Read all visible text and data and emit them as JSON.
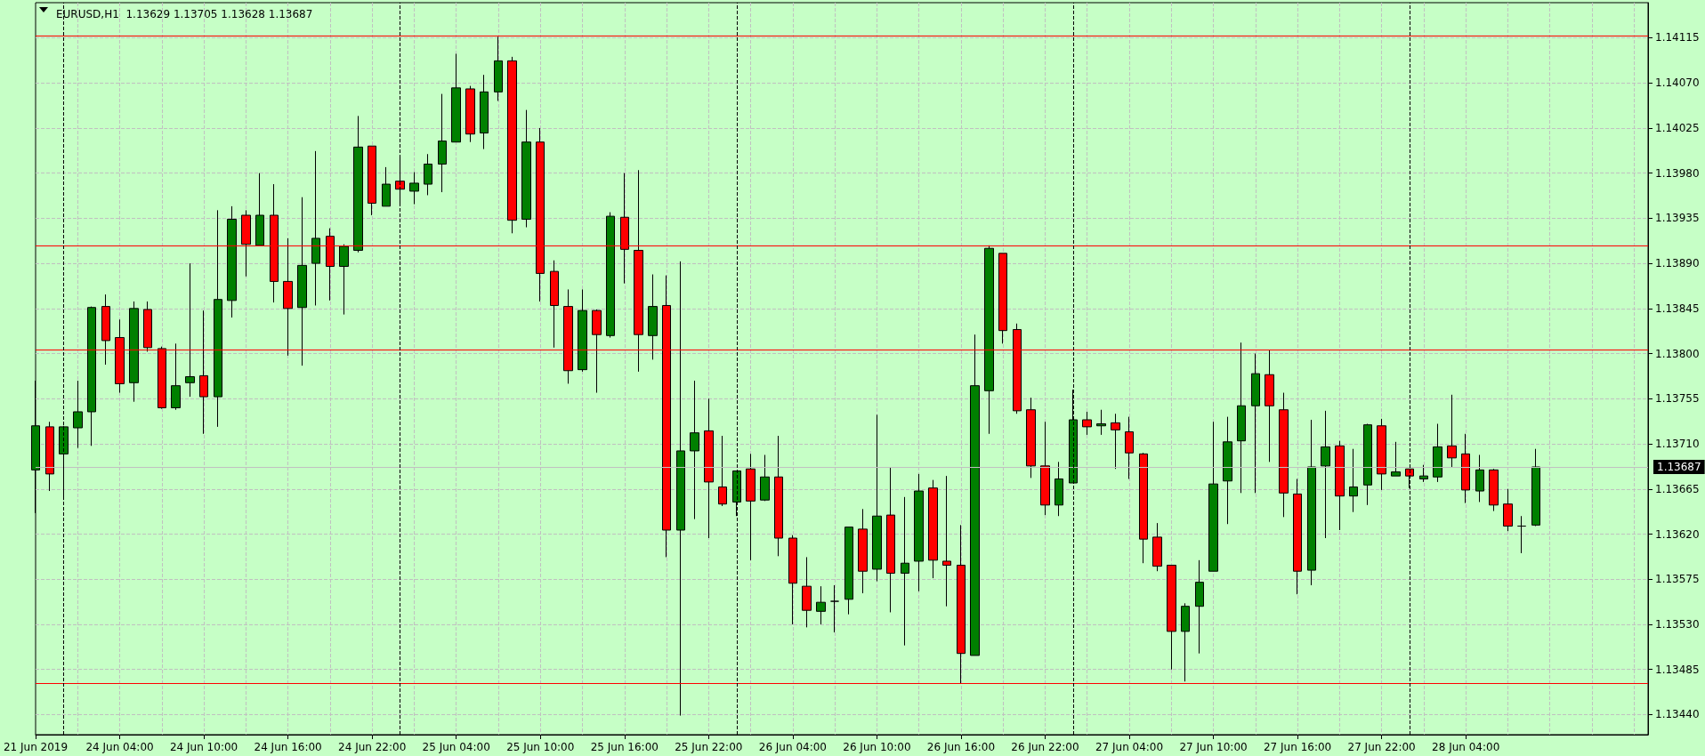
{
  "chart_data": {
    "type": "candlestick",
    "title": "EURUSD,H1  1.13629 1.13705 1.13628 1.13687",
    "categories": [
      "21 Jun 2019",
      null,
      null,
      null,
      null,
      null,
      "24 Jun 04:00",
      null,
      null,
      null,
      null,
      null,
      "24 Jun 10:00",
      null,
      null,
      null,
      null,
      null,
      "24 Jun 16:00",
      null,
      null,
      null,
      null,
      null,
      "24 Jun 22:00",
      null,
      null,
      null,
      null,
      null,
      "25 Jun 04:00",
      null,
      null,
      null,
      null,
      null,
      "25 Jun 10:00",
      null,
      null,
      null,
      null,
      null,
      "25 Jun 16:00",
      null,
      null,
      null,
      null,
      null,
      "25 Jun 22:00",
      null,
      null,
      null,
      null,
      null,
      "26 Jun 04:00",
      null,
      null,
      null,
      null,
      null,
      "26 Jun 10:00",
      null,
      null,
      null,
      null,
      null,
      "26 Jun 16:00",
      null,
      null,
      null,
      null,
      null,
      "26 Jun 22:00",
      null,
      null,
      null,
      null,
      null,
      "27 Jun 04:00",
      null,
      null,
      null,
      null,
      null,
      "27 Jun 10:00",
      null,
      null,
      null,
      null,
      null,
      "27 Jun 16:00",
      null,
      null,
      null,
      null,
      null,
      "27 Jun 22:00",
      null,
      null,
      null,
      null,
      null,
      "28 Jun 04:00",
      null,
      null,
      null,
      null,
      null,
      null,
      null,
      null,
      null,
      null,
      null,
      null,
      null
    ],
    "ohlc": [
      [
        1.13684,
        1.13773,
        1.13641,
        1.13728
      ],
      [
        1.13727,
        1.13732,
        1.13663,
        1.1368
      ],
      [
        1.137,
        1.13728,
        1.13654,
        1.13727
      ],
      [
        1.13726,
        1.13773,
        1.13706,
        1.13742
      ],
      [
        1.13742,
        1.13847,
        1.13708,
        1.13846
      ],
      [
        1.13847,
        1.13859,
        1.13789,
        1.13813
      ],
      [
        1.13816,
        1.13834,
        1.13761,
        1.1377
      ],
      [
        1.13771,
        1.13852,
        1.13752,
        1.13845
      ],
      [
        1.13844,
        1.13852,
        1.13802,
        1.13806
      ],
      [
        1.13805,
        1.13807,
        1.13745,
        1.13746
      ],
      [
        1.13746,
        1.1381,
        1.13744,
        1.13768
      ],
      [
        1.13771,
        1.1389,
        1.13757,
        1.13777
      ],
      [
        1.13778,
        1.13843,
        1.1372,
        1.13757
      ],
      [
        1.13757,
        1.13943,
        1.13727,
        1.13854
      ],
      [
        1.13853,
        1.13947,
        1.13836,
        1.13934
      ],
      [
        1.13938,
        1.13943,
        1.13877,
        1.13909
      ],
      [
        1.13908,
        1.1398,
        1.13908,
        1.13938
      ],
      [
        1.13938,
        1.13969,
        1.13851,
        1.13872
      ],
      [
        1.13872,
        1.13915,
        1.13798,
        1.13845
      ],
      [
        1.13846,
        1.13956,
        1.13788,
        1.13888
      ],
      [
        1.1389,
        1.14002,
        1.13848,
        1.13915
      ],
      [
        1.13917,
        1.13925,
        1.13853,
        1.13887
      ],
      [
        1.13887,
        1.13909,
        1.13839,
        1.13907
      ],
      [
        1.13903,
        1.14037,
        1.13901,
        1.14006
      ],
      [
        1.14007,
        1.14007,
        1.13938,
        1.1395
      ],
      [
        1.13947,
        1.13986,
        1.13947,
        1.13969
      ],
      [
        1.13972,
        1.13995,
        1.13949,
        1.13964
      ],
      [
        1.13962,
        1.13981,
        1.13949,
        1.1397
      ],
      [
        1.13969,
        1.13999,
        1.13958,
        1.13989
      ],
      [
        1.13989,
        1.14059,
        1.13961,
        1.14012
      ],
      [
        1.14011,
        1.14099,
        1.14011,
        1.14065
      ],
      [
        1.14064,
        1.14067,
        1.14011,
        1.14019
      ],
      [
        1.1402,
        1.14078,
        1.14004,
        1.14061
      ],
      [
        1.14061,
        1.14116,
        1.14052,
        1.14092
      ],
      [
        1.14092,
        1.14096,
        1.1392,
        1.13933
      ],
      [
        1.13934,
        1.14043,
        1.13926,
        1.14011
      ],
      [
        1.14011,
        1.14025,
        1.13852,
        1.1388
      ],
      [
        1.13882,
        1.13893,
        1.13806,
        1.13848
      ],
      [
        1.13847,
        1.13864,
        1.1377,
        1.13783
      ],
      [
        1.13784,
        1.13864,
        1.13782,
        1.13843
      ],
      [
        1.13843,
        1.13844,
        1.13761,
        1.13819
      ],
      [
        1.13818,
        1.13941,
        1.13816,
        1.13937
      ],
      [
        1.13936,
        1.1398,
        1.1387,
        1.13904
      ],
      [
        1.13903,
        1.13983,
        1.13782,
        1.13819
      ],
      [
        1.13818,
        1.13879,
        1.13794,
        1.13847
      ],
      [
        1.13848,
        1.13878,
        1.13597,
        1.13624
      ],
      [
        1.13624,
        1.13892,
        1.13439,
        1.13703
      ],
      [
        1.13703,
        1.13773,
        1.13635,
        1.13721
      ],
      [
        1.13723,
        1.13755,
        1.13616,
        1.13672
      ],
      [
        1.13667,
        1.13718,
        1.13648,
        1.1365
      ],
      [
        1.13652,
        1.13683,
        1.13638,
        1.13683
      ],
      [
        1.13685,
        1.137,
        1.13594,
        1.13653
      ],
      [
        1.13654,
        1.13699,
        1.13653,
        1.13677
      ],
      [
        1.13677,
        1.13718,
        1.13598,
        1.13616
      ],
      [
        1.13616,
        1.13619,
        1.1353,
        1.13571
      ],
      [
        1.13568,
        1.13597,
        1.13527,
        1.13544
      ],
      [
        1.13543,
        1.13568,
        1.1353,
        1.13552
      ],
      [
        1.13553,
        1.13569,
        1.13522,
        1.13553
      ],
      [
        1.13555,
        1.13627,
        1.1354,
        1.13627
      ],
      [
        1.13625,
        1.13645,
        1.13561,
        1.13583
      ],
      [
        1.13585,
        1.13739,
        1.13573,
        1.13638
      ],
      [
        1.13639,
        1.13687,
        1.13542,
        1.13581
      ],
      [
        1.13581,
        1.13657,
        1.13509,
        1.13591
      ],
      [
        1.13593,
        1.1368,
        1.13563,
        1.13663
      ],
      [
        1.13666,
        1.13674,
        1.13576,
        1.13594
      ],
      [
        1.13593,
        1.13678,
        1.13548,
        1.13589
      ],
      [
        1.13589,
        1.13629,
        1.13471,
        1.13501
      ],
      [
        1.13499,
        1.13819,
        1.13499,
        1.13768
      ],
      [
        1.13763,
        1.13908,
        1.1372,
        1.13905
      ],
      [
        1.139,
        1.139,
        1.1381,
        1.13823
      ],
      [
        1.13824,
        1.1383,
        1.1374,
        1.13743
      ],
      [
        1.13744,
        1.13756,
        1.13676,
        1.13688
      ],
      [
        1.13688,
        1.13732,
        1.13639,
        1.13649
      ],
      [
        1.13649,
        1.13692,
        1.13638,
        1.13675
      ],
      [
        1.13671,
        1.13764,
        1.13671,
        1.13734
      ],
      [
        1.13734,
        1.13742,
        1.13719,
        1.13727
      ],
      [
        1.13728,
        1.13744,
        1.13719,
        1.1373
      ],
      [
        1.13731,
        1.1374,
        1.13685,
        1.13724
      ],
      [
        1.13722,
        1.13737,
        1.13675,
        1.13701
      ],
      [
        1.137,
        1.13701,
        1.13591,
        1.13615
      ],
      [
        1.13617,
        1.13631,
        1.13583,
        1.13588
      ],
      [
        1.13589,
        1.13589,
        1.13485,
        1.13523
      ],
      [
        1.13523,
        1.13551,
        1.13473,
        1.13548
      ],
      [
        1.13548,
        1.13594,
        1.13501,
        1.13572
      ],
      [
        1.13583,
        1.13732,
        1.13583,
        1.1367
      ],
      [
        1.13673,
        1.13737,
        1.1363,
        1.13712
      ],
      [
        1.13713,
        1.13811,
        1.13661,
        1.13748
      ],
      [
        1.13748,
        1.138,
        1.13661,
        1.1378
      ],
      [
        1.13779,
        1.13804,
        1.13692,
        1.13748
      ],
      [
        1.13744,
        1.13761,
        1.13637,
        1.13661
      ],
      [
        1.1366,
        1.13675,
        1.1356,
        1.13583
      ],
      [
        1.13584,
        1.13734,
        1.13569,
        1.13687
      ],
      [
        1.13688,
        1.13743,
        1.13616,
        1.13707
      ],
      [
        1.13708,
        1.13713,
        1.13624,
        1.13658
      ],
      [
        1.13658,
        1.13705,
        1.13642,
        1.13667
      ],
      [
        1.13669,
        1.1373,
        1.13649,
        1.13729
      ],
      [
        1.13728,
        1.13735,
        1.13664,
        1.1368
      ],
      [
        1.13678,
        1.13712,
        1.13678,
        1.13682
      ],
      [
        1.13685,
        1.13685,
        1.13666,
        1.13678
      ],
      [
        1.13675,
        1.13689,
        1.13672,
        1.13678
      ],
      [
        1.13677,
        1.1373,
        1.13672,
        1.13707
      ],
      [
        1.13708,
        1.13759,
        1.13687,
        1.13696
      ],
      [
        1.137,
        1.1372,
        1.13651,
        1.13664
      ],
      [
        1.13663,
        1.13699,
        1.13652,
        1.13684
      ],
      [
        1.13684,
        1.13685,
        1.13643,
        1.13649
      ],
      [
        1.1365,
        1.13665,
        1.13623,
        1.13628
      ],
      [
        1.13628,
        1.13638,
        1.13601,
        1.13628
      ],
      [
        1.13629,
        1.13705,
        1.13628,
        1.13687
      ],
      null,
      null,
      null,
      null,
      null,
      null,
      null,
      null
    ],
    "colors": [
      "#008000",
      "#ff0000",
      "#008000",
      "#008000",
      "#008000",
      "#ff0000",
      "#ff0000",
      "#008000",
      "#ff0000",
      "#ff0000",
      "#008000",
      "#008000",
      "#ff0000",
      "#008000",
      "#008000",
      "#ff0000",
      "#008000",
      "#ff0000",
      "#ff0000",
      "#008000",
      "#008000",
      "#ff0000",
      "#008000",
      "#008000",
      "#ff0000",
      "#008000",
      "#ff0000",
      "#008000",
      "#008000",
      "#008000",
      "#008000",
      "#ff0000",
      "#008000",
      "#008000",
      "#ff0000",
      "#008000",
      "#ff0000",
      "#ff0000",
      "#ff0000",
      "#008000",
      "#ff0000",
      "#008000",
      "#ff0000",
      "#ff0000",
      "#008000",
      "#ff0000",
      "#008000",
      "#008000",
      "#ff0000",
      "#ff0000",
      "#008000",
      "#ff0000",
      "#008000",
      "#ff0000",
      "#ff0000",
      "#ff0000",
      "#008000",
      "#000000",
      "#008000",
      "#ff0000",
      "#008000",
      "#ff0000",
      "#008000",
      "#008000",
      "#ff0000",
      "#ff0000",
      "#ff0000",
      "#008000",
      "#008000",
      "#ff0000",
      "#ff0000",
      "#ff0000",
      "#ff0000",
      "#008000",
      "#008000",
      "#ff0000",
      "#008000",
      "#ff0000",
      "#ff0000",
      "#ff0000",
      "#ff0000",
      "#ff0000",
      "#008000",
      "#008000",
      "#008000",
      "#008000",
      "#008000",
      "#008000",
      "#ff0000",
      "#ff0000",
      "#ff0000",
      "#008000",
      "#008000",
      "#ff0000",
      "#008000",
      "#008000",
      "#ff0000",
      "#008000",
      "#ff0000",
      "#008000",
      "#008000",
      "#ff0000",
      "#ff0000",
      "#008000",
      "#ff0000",
      "#ff0000",
      "#000000",
      "#008000",
      null,
      null,
      null,
      null,
      null,
      null,
      null,
      null
    ],
    "ylim": [
      1.1342,
      1.1415
    ],
    "yticks": [
      {
        "value": 1.1344,
        "label": "1.13440"
      },
      {
        "value": 1.13485,
        "label": "1.13485"
      },
      {
        "value": 1.1353,
        "label": "1.13530"
      },
      {
        "value": 1.13575,
        "label": "1.13575"
      },
      {
        "value": 1.1362,
        "label": "1.13620"
      },
      {
        "value": 1.13665,
        "label": "1.13665"
      },
      {
        "value": 1.1371,
        "label": "1.13710"
      },
      {
        "value": 1.13755,
        "label": "1.13755"
      },
      {
        "value": 1.138,
        "label": "1.13800"
      },
      {
        "value": 1.13845,
        "label": "1.13845"
      },
      {
        "value": 1.1389,
        "label": "1.13890"
      },
      {
        "value": 1.13935,
        "label": "1.13935"
      },
      {
        "value": 1.1398,
        "label": "1.13980"
      },
      {
        "value": 1.14025,
        "label": "1.14025"
      },
      {
        "value": 1.1407,
        "label": "1.14070"
      },
      {
        "value": 1.14115,
        "label": "1.14115"
      }
    ],
    "ref_lines": [
      {
        "axis": "y",
        "value": 1.14117,
        "color": "#ff0000",
        "line_style": "solid"
      },
      {
        "axis": "y",
        "value": 1.13908,
        "color": "#ff0000",
        "line_style": "solid"
      },
      {
        "axis": "y",
        "value": 1.13804,
        "color": "#ff0000",
        "line_style": "solid"
      },
      {
        "axis": "y",
        "value": 1.13471,
        "color": "#ff0000",
        "line_style": "solid"
      },
      {
        "axis": "y",
        "value": 1.13687,
        "label": "1.13687",
        "color": "#c0c0c0",
        "line_style": "solid"
      }
    ],
    "grid": true
  }
}
